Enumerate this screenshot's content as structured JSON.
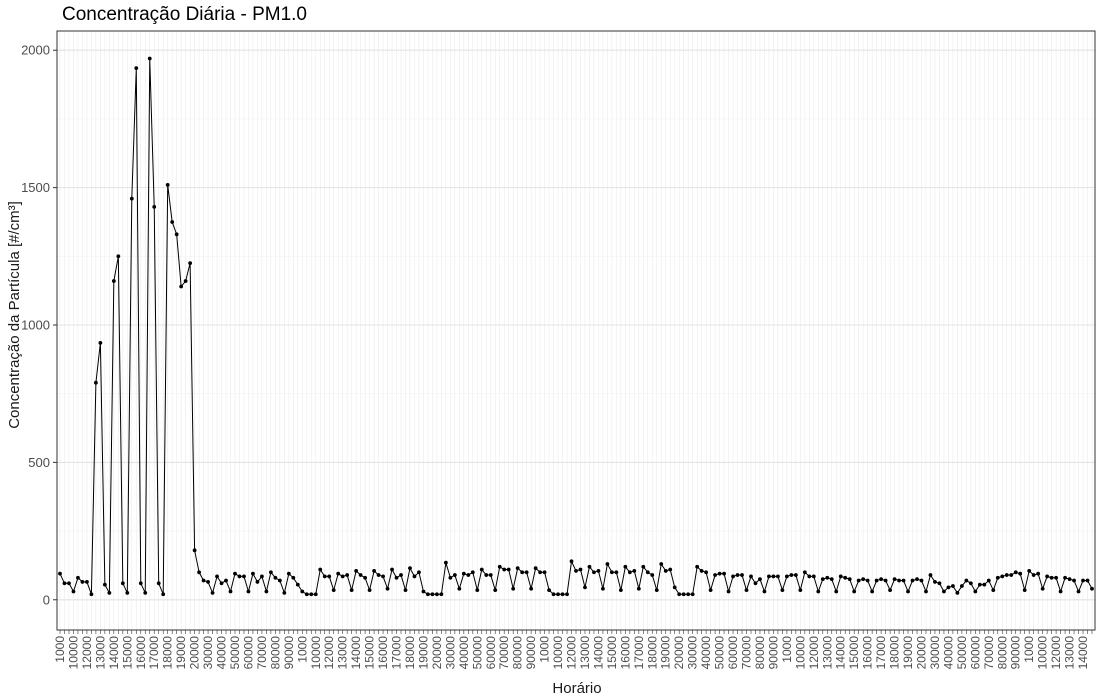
{
  "chart_data": {
    "type": "line",
    "title": "Concentração Diária - PM1.0",
    "xlabel": "Horário",
    "ylabel": "Concentração da Partícula [#/cm³]",
    "ylim": [
      -110,
      2070
    ],
    "yticks": [
      0,
      500,
      1000,
      1500,
      2000
    ],
    "grid": true,
    "legend": "none",
    "line_color": "#000000",
    "x_tick_labels_sample": [
      "1000",
      "10000",
      "12000",
      "13000",
      "14000",
      "15000",
      "16000",
      "17000",
      "18000",
      "19000",
      "20000",
      "30000",
      "40000",
      "50000",
      "60000",
      "70000",
      "80000",
      "90000"
    ],
    "series": [
      {
        "values": [
          95,
          60,
          60,
          30,
          80,
          65,
          65,
          20,
          790,
          935,
          55,
          25,
          1160,
          1250,
          60,
          25,
          1460,
          1935,
          60,
          25,
          1970,
          1430,
          60,
          20,
          1510,
          1375,
          1330,
          1140,
          1160,
          1225,
          180,
          100,
          70,
          65,
          25,
          85,
          60,
          70,
          30,
          95,
          85,
          85,
          30,
          95,
          65,
          85,
          30,
          100,
          80,
          70,
          25,
          95,
          80,
          55,
          30,
          20,
          20,
          20,
          110,
          85,
          85,
          35,
          95,
          85,
          90,
          35,
          105,
          90,
          80,
          35,
          105,
          90,
          85,
          40,
          110,
          80,
          90,
          35,
          115,
          85,
          100,
          30,
          20,
          20,
          20,
          20,
          135,
          80,
          90,
          40,
          95,
          90,
          100,
          35,
          110,
          90,
          90,
          35,
          120,
          110,
          110,
          40,
          115,
          100,
          100,
          40,
          115,
          100,
          100,
          35,
          20,
          20,
          20,
          20,
          140,
          105,
          110,
          45,
          120,
          100,
          105,
          40,
          130,
          100,
          100,
          35,
          120,
          100,
          105,
          40,
          120,
          100,
          90,
          35,
          130,
          105,
          110,
          45,
          20,
          20,
          20,
          20,
          120,
          105,
          100,
          35,
          90,
          95,
          95,
          30,
          85,
          90,
          90,
          35,
          85,
          60,
          75,
          30,
          85,
          85,
          85,
          35,
          85,
          90,
          90,
          35,
          100,
          85,
          85,
          30,
          75,
          80,
          75,
          30,
          85,
          80,
          75,
          30,
          70,
          75,
          70,
          30,
          70,
          75,
          70,
          35,
          75,
          70,
          70,
          30,
          70,
          75,
          70,
          30,
          90,
          65,
          60,
          30,
          45,
          50,
          25,
          50,
          70,
          60,
          30,
          55,
          55,
          70,
          35,
          80,
          85,
          90,
          90,
          100,
          95,
          35,
          105,
          90,
          95,
          40,
          85,
          80,
          80,
          30,
          80,
          75,
          70,
          30,
          70,
          70,
          40
        ]
      }
    ]
  }
}
